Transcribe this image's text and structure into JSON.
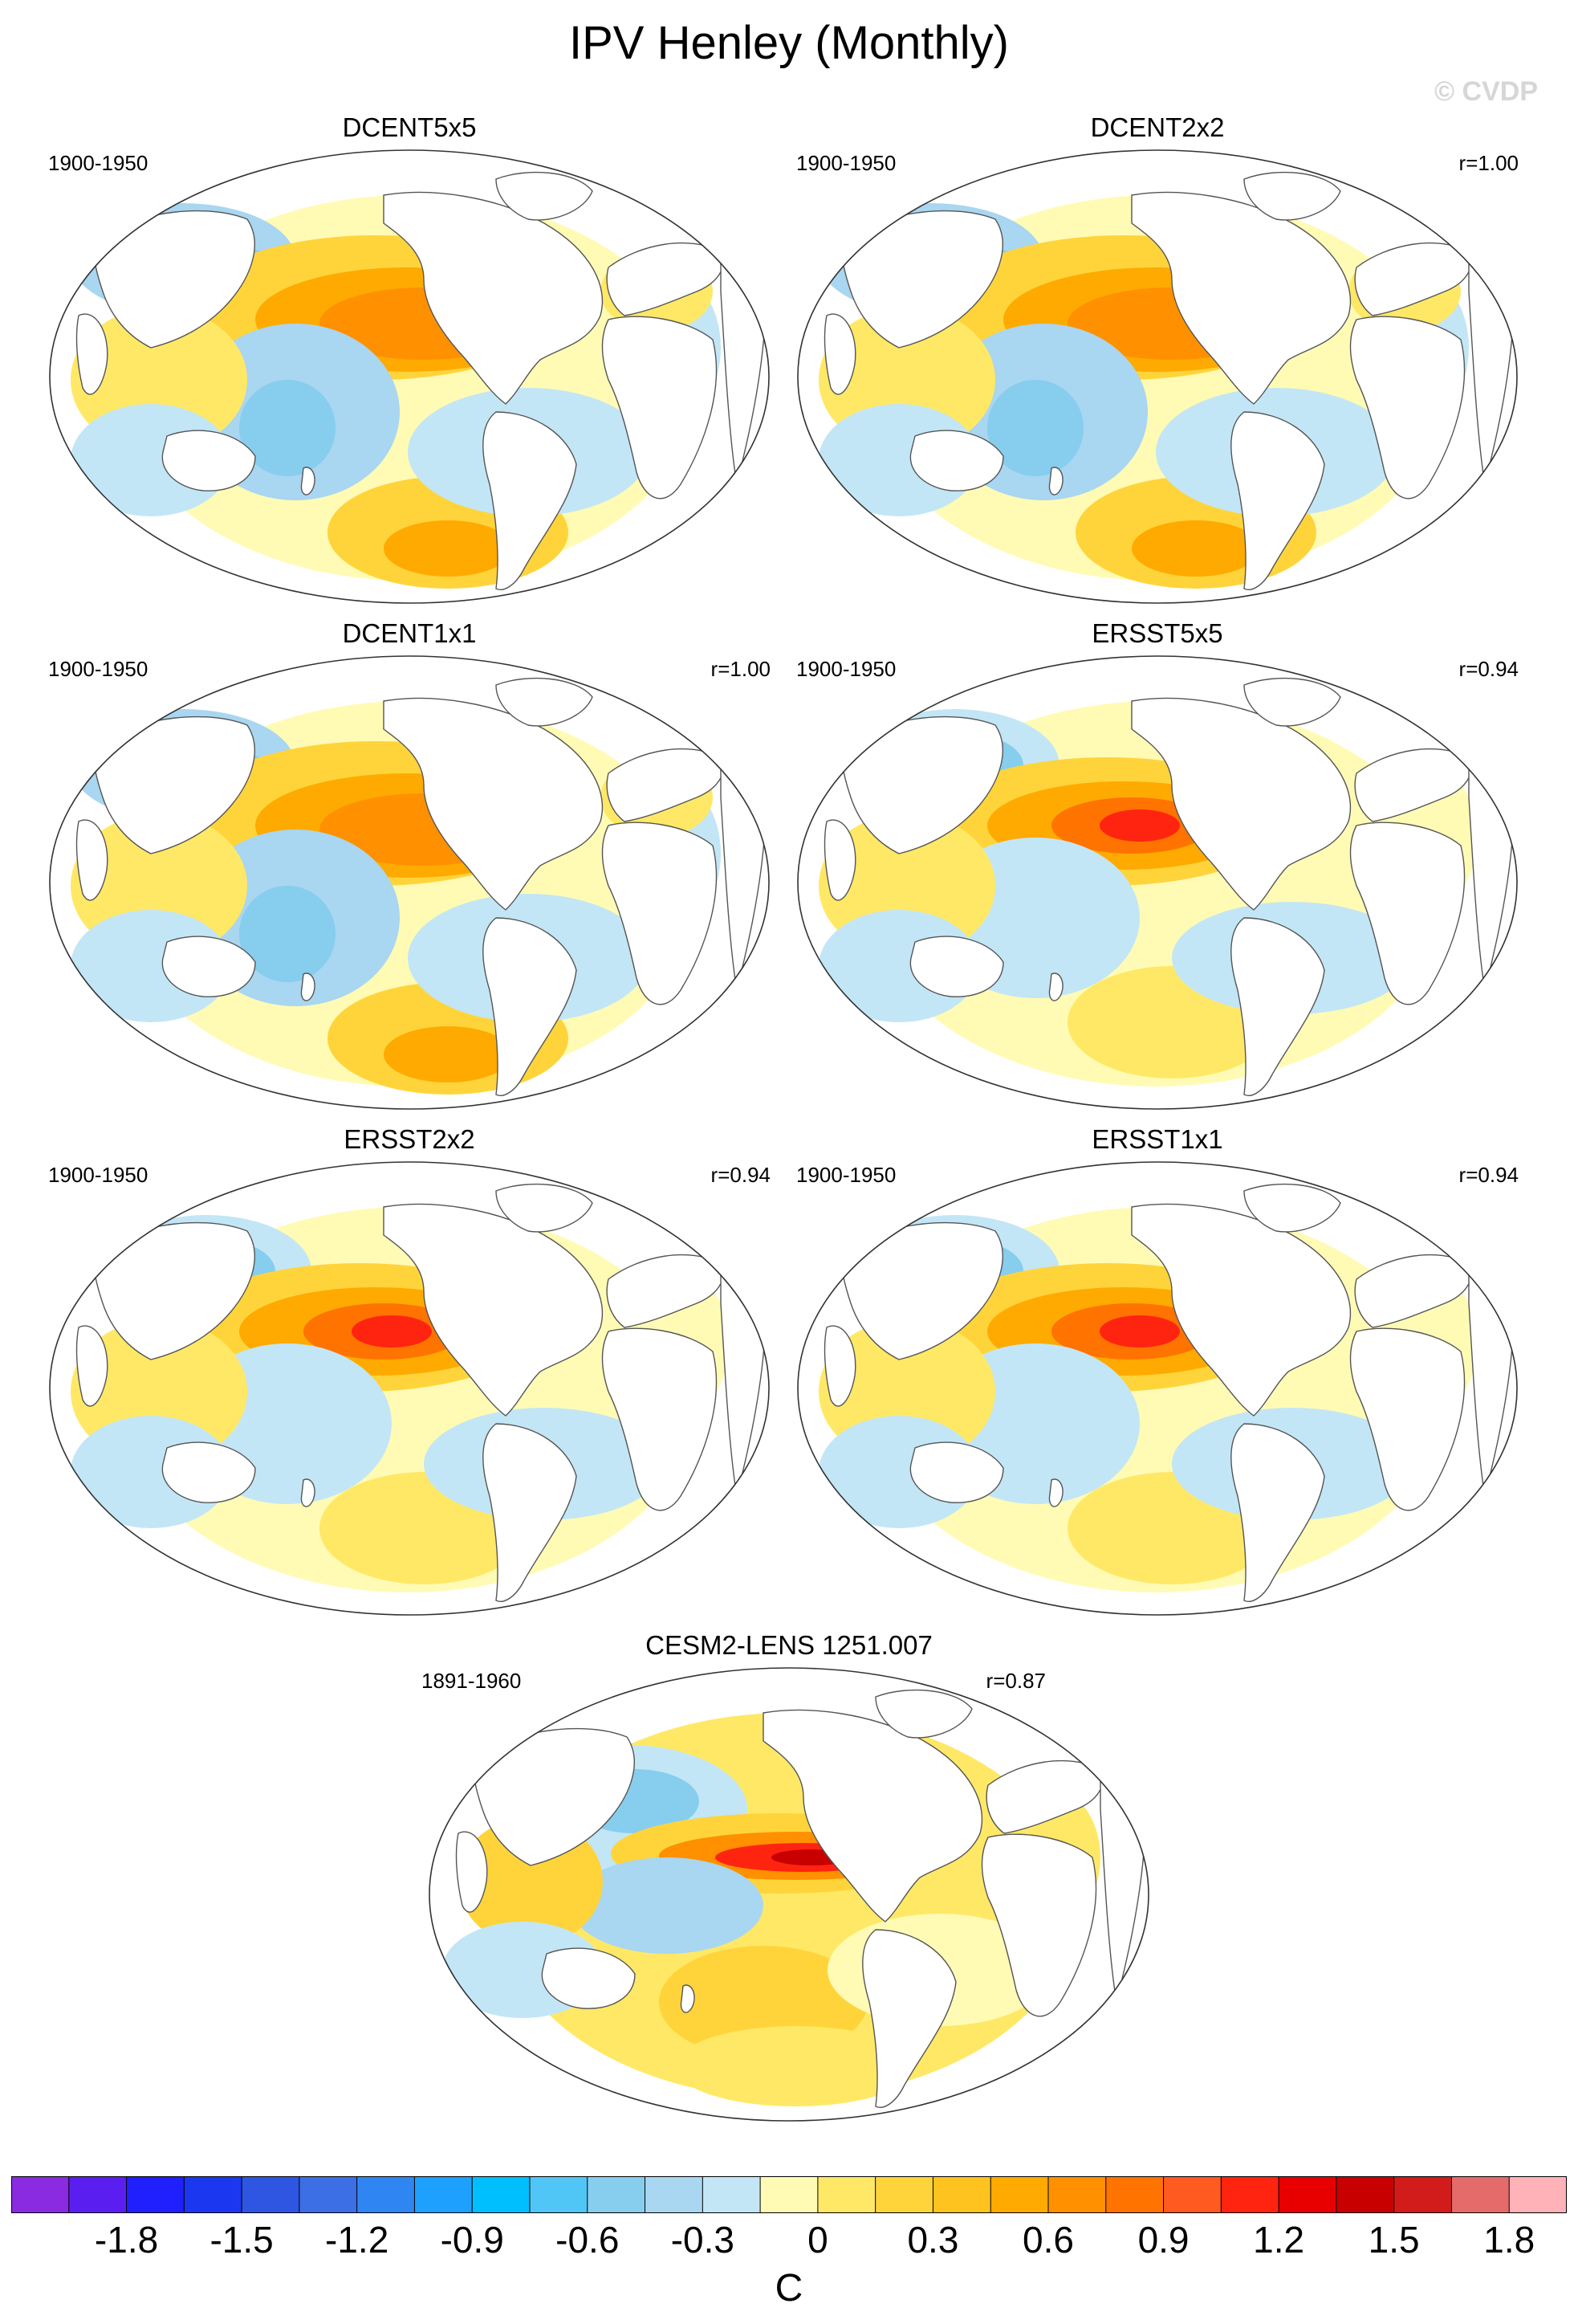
{
  "title": "IPV Henley (Monthly)",
  "watermark": "© CVDP",
  "panels": [
    {
      "name": "DCENT5x5",
      "period": "1900-1950",
      "r": "",
      "pattern": 0
    },
    {
      "name": "DCENT2x2",
      "period": "1900-1950",
      "r": "r=1.00",
      "pattern": 0
    },
    {
      "name": "DCENT1x1",
      "period": "1900-1950",
      "r": "r=1.00",
      "pattern": 0
    },
    {
      "name": "ERSST5x5",
      "period": "1900-1950",
      "r": "r=0.94",
      "pattern": 1
    },
    {
      "name": "ERSST2x2",
      "period": "1900-1950",
      "r": "r=0.94",
      "pattern": 1
    },
    {
      "name": "ERSST1x1",
      "period": "1900-1950",
      "r": "r=0.94",
      "pattern": 1
    },
    {
      "name": "CESM2-LENS 1251.007",
      "period": "1891-1960",
      "r": "r=0.87",
      "pattern": 2
    }
  ],
  "colorbar": {
    "units": "C",
    "colors": [
      "#8a2be2",
      "#5a1ff0",
      "#2020ff",
      "#1b38f0",
      "#2f55e3",
      "#3c6ee6",
      "#2f86f2",
      "#1ea0ff",
      "#00bfff",
      "#4fc6f5",
      "#87cdee",
      "#a9d6f0",
      "#c2e6f6",
      "#fffbb5",
      "#ffe866",
      "#ffd43b",
      "#ffc31f",
      "#ffaa00",
      "#ff9000",
      "#ff7300",
      "#ff5a1f",
      "#ff2410",
      "#e80000",
      "#c80000",
      "#d21c1c",
      "#e56a6a",
      "#ffb3b8"
    ],
    "tick_labels": [
      "-1.8",
      "-1.5",
      "-1.2",
      "-0.9",
      "-0.6",
      "-0.3",
      "0",
      "0.3",
      "0.6",
      "0.9",
      "1.2",
      "1.5",
      "1.8"
    ]
  }
}
